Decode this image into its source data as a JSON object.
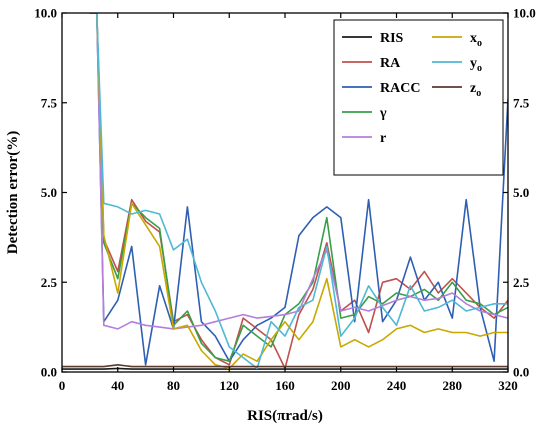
{
  "chart_data": {
    "type": "line",
    "xlabel": "RIS(πrad/s)",
    "ylabel": "Detection error(%)",
    "xlim": [
      0,
      320
    ],
    "ylim": [
      0,
      10
    ],
    "x_ticks": [
      "0",
      "40",
      "80",
      "120",
      "160",
      "200",
      "240",
      "280",
      "320"
    ],
    "y_ticks": [
      "0.0",
      "2.5",
      "5.0",
      "7.5",
      "10.0"
    ],
    "right_y_ticks": [
      "0.0",
      "2.5",
      "5.0",
      "7.5",
      "10.0"
    ],
    "grid": false,
    "legend_position": "top-right",
    "x": [
      0,
      10,
      20,
      25,
      30,
      40,
      50,
      60,
      70,
      80,
      90,
      100,
      110,
      120,
      130,
      140,
      150,
      160,
      170,
      180,
      190,
      200,
      210,
      220,
      230,
      240,
      250,
      260,
      270,
      280,
      290,
      300,
      310,
      320
    ],
    "series": [
      {
        "name": "RIS",
        "color": "#1a1a1a",
        "values": [
          0.08,
          0.08,
          0.08,
          0.08,
          0.08,
          0.1,
          0.08,
          0.08,
          0.08,
          0.08,
          0.08,
          0.08,
          0.08,
          0.08,
          0.08,
          0.08,
          0.08,
          0.08,
          0.08,
          0.08,
          0.08,
          0.08,
          0.08,
          0.08,
          0.08,
          0.08,
          0.08,
          0.08,
          0.08,
          0.08,
          0.08,
          0.08,
          0.08,
          0.08
        ]
      },
      {
        "name": "RA",
        "color": "#c0504d",
        "values": [
          null,
          null,
          10.0,
          10.0,
          3.7,
          2.8,
          4.8,
          4.2,
          3.9,
          1.4,
          1.6,
          0.9,
          0.4,
          0.2,
          1.5,
          1.2,
          0.9,
          0.1,
          1.6,
          2.3,
          3.6,
          1.7,
          2.0,
          1.1,
          2.5,
          2.6,
          2.3,
          2.8,
          2.2,
          2.6,
          2.2,
          1.8,
          1.5,
          2.0
        ]
      },
      {
        "name": "RACC",
        "color": "#2f5fb3",
        "values": [
          null,
          null,
          10.0,
          10.0,
          1.4,
          2.0,
          3.5,
          0.2,
          2.4,
          1.2,
          4.6,
          1.4,
          1.0,
          0.3,
          0.9,
          1.3,
          1.5,
          1.8,
          3.8,
          4.3,
          4.6,
          4.3,
          1.4,
          4.8,
          1.4,
          2.0,
          3.2,
          2.0,
          2.5,
          1.5,
          4.8,
          1.8,
          0.3,
          7.6
        ]
      },
      {
        "name": "γ",
        "color": "#3a9e48",
        "values": [
          null,
          null,
          10.0,
          10.0,
          3.6,
          2.6,
          4.7,
          4.3,
          4.0,
          1.3,
          1.7,
          0.8,
          0.4,
          0.3,
          1.3,
          1.0,
          0.7,
          1.6,
          1.9,
          2.5,
          4.3,
          1.5,
          1.6,
          2.1,
          1.9,
          2.2,
          2.1,
          2.3,
          2.0,
          2.5,
          2.0,
          1.9,
          1.6,
          1.8
        ]
      },
      {
        "name": "r",
        "color": "#b57edc",
        "values": [
          null,
          null,
          10.0,
          10.0,
          1.3,
          1.2,
          1.4,
          1.3,
          1.25,
          1.2,
          1.25,
          1.3,
          1.4,
          1.5,
          1.6,
          1.5,
          1.55,
          1.6,
          1.7,
          2.6,
          3.4,
          1.7,
          1.8,
          1.7,
          1.85,
          2.0,
          2.1,
          2.0,
          2.05,
          2.2,
          1.9,
          1.7,
          1.6,
          1.5
        ]
      },
      {
        "name": "xo",
        "color": "#c9a800",
        "values": [
          null,
          null,
          10.0,
          10.0,
          3.8,
          2.2,
          4.7,
          4.1,
          3.5,
          1.2,
          1.3,
          0.6,
          0.2,
          0.1,
          0.5,
          0.3,
          0.9,
          1.4,
          0.9,
          1.4,
          2.6,
          0.7,
          0.9,
          0.7,
          0.9,
          1.2,
          1.3,
          1.1,
          1.2,
          1.1,
          1.1,
          1.0,
          1.1,
          1.1
        ]
      },
      {
        "name": "yo",
        "color": "#4fb8d4",
        "values": [
          null,
          null,
          10.0,
          10.0,
          4.7,
          4.6,
          4.4,
          4.5,
          4.4,
          3.4,
          3.7,
          2.5,
          1.7,
          0.7,
          0.4,
          0.1,
          1.4,
          1.0,
          1.8,
          2.0,
          3.5,
          1.0,
          1.5,
          2.4,
          1.8,
          1.3,
          2.4,
          1.7,
          1.8,
          2.0,
          1.7,
          1.8,
          1.9,
          1.9
        ]
      },
      {
        "name": "zo",
        "color": "#5a3a2e",
        "values": [
          0.15,
          0.15,
          0.15,
          0.15,
          0.15,
          0.2,
          0.15,
          0.15,
          0.15,
          0.15,
          0.15,
          0.15,
          0.15,
          0.15,
          0.15,
          0.15,
          0.15,
          0.15,
          0.15,
          0.15,
          0.15,
          0.15,
          0.15,
          0.15,
          0.15,
          0.15,
          0.15,
          0.15,
          0.15,
          0.15,
          0.15,
          0.15,
          0.15,
          0.15
        ]
      }
    ]
  }
}
